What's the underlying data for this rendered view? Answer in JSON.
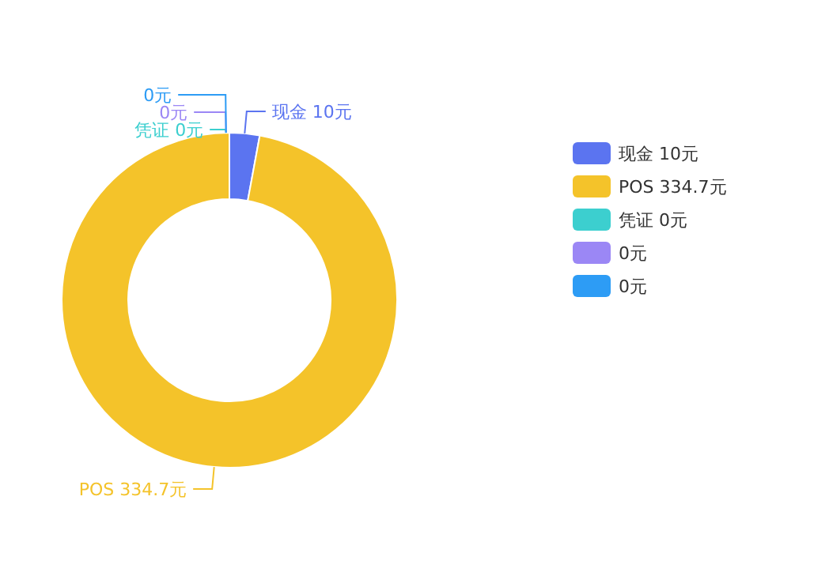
{
  "chart_data": {
    "type": "donut",
    "categories": [
      "现金",
      "POS",
      "凭证",
      null,
      null
    ],
    "values": [
      10,
      334.7,
      0,
      0,
      0
    ],
    "colors": [
      "#5b74f0",
      "#f4c32a",
      "#3ccfcf",
      "#9b87f5",
      "#2d9cf5"
    ],
    "value_labels": [
      "10元",
      "334.7元",
      "0元",
      "0元",
      "0元"
    ],
    "legend": "right"
  }
}
